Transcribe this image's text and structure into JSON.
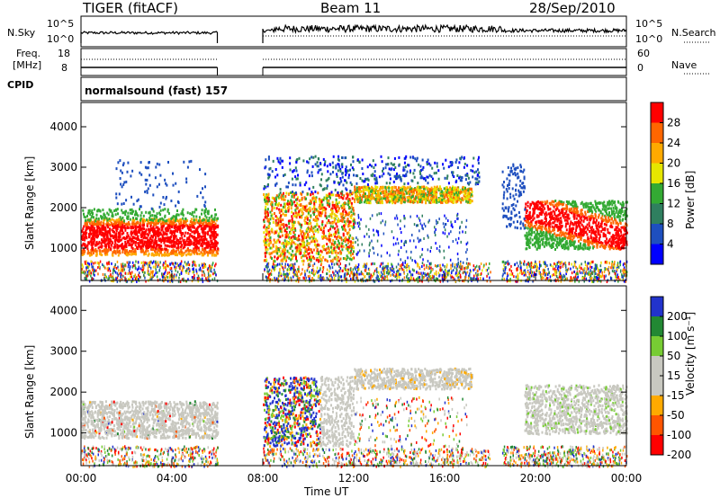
{
  "header": {
    "radar": "TIGER (fitACF)",
    "beam": "Beam 11",
    "date": "28/Sep/2010"
  },
  "side_labels": {
    "nsky": "N.Sky",
    "freq": "Freq.",
    "mhz": "[MHz]",
    "cpid": "CPID",
    "nsearch": "N.Search",
    "nave": "Nave"
  },
  "mini_axes": {
    "nsky_ticks": [
      "10^5",
      "10^0"
    ],
    "nsearch_ticks": [
      "10^5",
      "10^0"
    ],
    "freq_ticks": [
      "18",
      "8"
    ],
    "nave_ticks": [
      "60",
      "0"
    ]
  },
  "cpid_text": "normalsound (fast) 157",
  "colors": {
    "scale_power": [
      "#ff0000",
      "#ff6600",
      "#ffaa00",
      "#e6e600",
      "#33aa33",
      "#2f7f5f",
      "#1e4fbf",
      "#0000ff"
    ],
    "scale_velocity": [
      "#ff0000",
      "#ff5500",
      "#ffaa00",
      "#c8c8c0",
      "#c8c8c0",
      "#77cc33",
      "#228833",
      "#2233cc"
    ]
  },
  "chart_data": [
    {
      "type": "heatmap",
      "panel": "power",
      "ylabel": "Slant Range [km]",
      "yticks": [
        "1000",
        "2000",
        "3000",
        "4000"
      ],
      "ylim": [
        200,
        4600
      ],
      "colorbar_label": "Power [dB]",
      "colorbar_ticks": [
        "28",
        "24",
        "20",
        "16",
        "12",
        "8",
        "4"
      ],
      "colorbar_range": [
        0,
        32
      ],
      "data_gap_utc": [
        "06:00",
        "08:00"
      ],
      "echo_regions": [
        {
          "x": [
            "00:00",
            "06:00"
          ],
          "y": [
            800,
            1800
          ],
          "level": "high"
        },
        {
          "x": [
            "08:00",
            "12:00"
          ],
          "y": [
            800,
            2400
          ],
          "level": "medium"
        },
        {
          "x": [
            "12:00",
            "17:00"
          ],
          "y": [
            2100,
            2600
          ],
          "level": "medium"
        },
        {
          "x": [
            "19:30",
            "24:00"
          ],
          "y": [
            1000,
            2200
          ],
          "level": "high"
        }
      ]
    },
    {
      "type": "heatmap",
      "panel": "velocity",
      "ylabel": "Slant Range [km]",
      "yticks": [
        "1000",
        "2000",
        "3000",
        "4000"
      ],
      "ylim": [
        200,
        4600
      ],
      "xlabel": "Time UT",
      "xticks": [
        "00:00",
        "04:00",
        "08:00",
        "12:00",
        "16:00",
        "20:00",
        "00:00"
      ],
      "colorbar_label": "Velocity [m s⁻¹]",
      "colorbar_ticks": [
        "200",
        "100",
        "50",
        "15",
        "-15",
        "-50",
        "-100",
        "-200"
      ],
      "colorbar_range": [
        -250,
        250
      ],
      "data_gap_utc": [
        "06:00",
        "08:00"
      ]
    }
  ]
}
